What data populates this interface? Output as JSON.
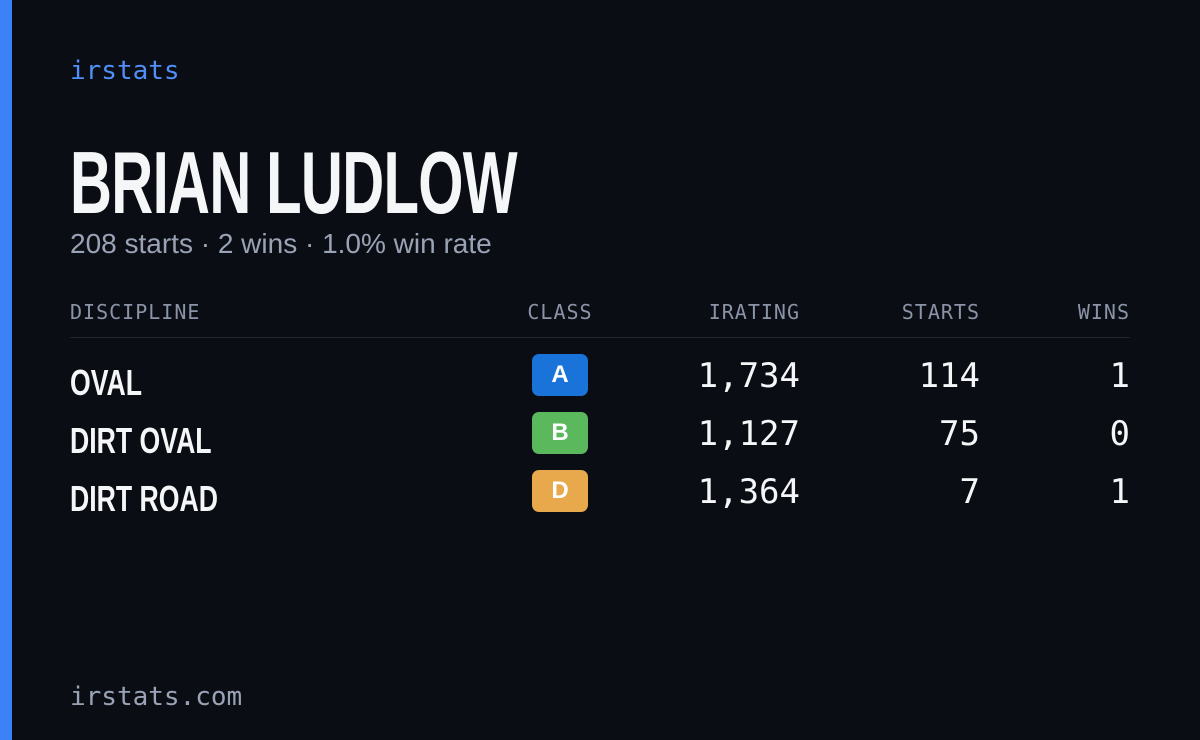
{
  "brand": "irstats",
  "driver": {
    "name": "BRIAN LUDLOW",
    "summary": "208 starts · 2 wins · 1.0% win rate"
  },
  "table": {
    "headers": [
      "DISCIPLINE",
      "CLASS",
      "IRATING",
      "STARTS",
      "WINS"
    ],
    "rows": [
      [
        "OVAL",
        "A",
        "1,734",
        "114",
        "1"
      ],
      [
        "DIRT OVAL",
        "B",
        "1,127",
        "75",
        "0"
      ],
      [
        "DIRT ROAD",
        "D",
        "1,364",
        "7",
        "1"
      ]
    ]
  },
  "footer": "irstats.com"
}
